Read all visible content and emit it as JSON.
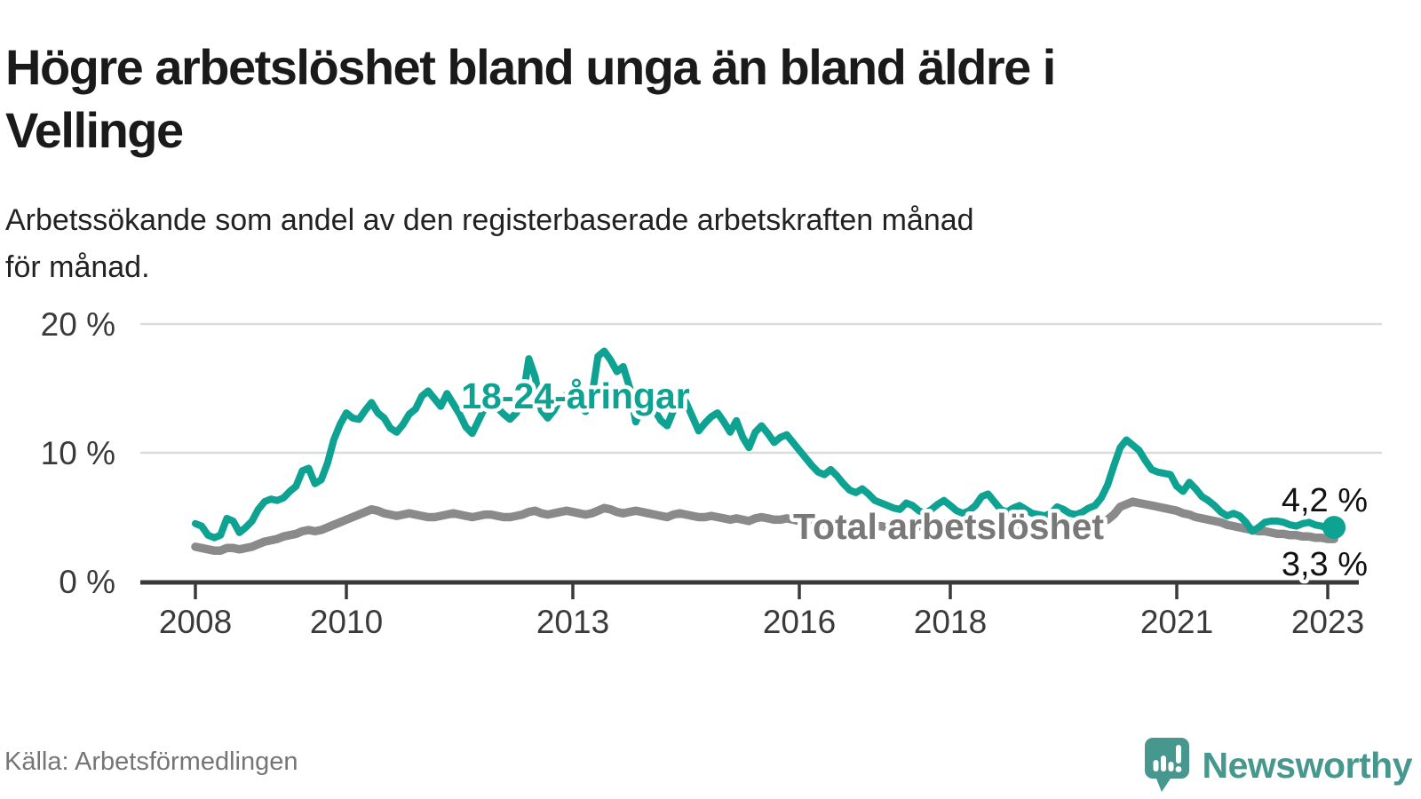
{
  "header": {
    "title_lines": [
      "Högre arbetslöshet bland unga än bland äldre i",
      "Vellinge"
    ],
    "subtitle_lines": [
      "Arbetssökande som andel av den registerbaserade arbetskraften månad",
      "för månad."
    ]
  },
  "footer": {
    "source": "Källa: Arbetsförmedlingen",
    "brand": "Newsworthy"
  },
  "colors": {
    "accent_teal": "#0DA291",
    "line_gray": "#8A8A8A",
    "label_gray": "#787878",
    "axis": "#3A3A3A",
    "grid": "#DBDBDB",
    "text_dark": "#1A1A1A",
    "text_muted": "#757575",
    "brand_teal": "#46988E"
  },
  "chart_data": {
    "type": "line",
    "title": "Högre arbetslöshet bland unga än bland äldre i Vellinge",
    "subtitle": "Arbetssökande som andel av den registerbaserade arbetskraften månad för månad.",
    "xlabel": "",
    "ylabel": "",
    "grid": "horizontal",
    "legend": "inline-labels",
    "x_start_year": 2008,
    "x_unit": "month",
    "ylim": [
      0,
      20
    ],
    "y_ticks": [
      {
        "value": 0,
        "label": "0 %"
      },
      {
        "value": 10,
        "label": "10 %"
      },
      {
        "value": 20,
        "label": "20 %"
      }
    ],
    "x_ticks": [
      {
        "year": 2008,
        "label": "2008"
      },
      {
        "year": 2010,
        "label": "2010"
      },
      {
        "year": 2013,
        "label": "2013"
      },
      {
        "year": 2016,
        "label": "2016"
      },
      {
        "year": 2018,
        "label": "2018"
      },
      {
        "year": 2021,
        "label": "2021"
      },
      {
        "year": 2023,
        "label": "2023"
      }
    ],
    "series": [
      {
        "id": "youth",
        "name": "18-24-åringar",
        "label": "18-24-åringar",
        "end_label": "4,2 %",
        "end_value": 4.2,
        "color": "#0DA291",
        "label_color": "#0DA291",
        "end_dot": true,
        "values": [
          4.5,
          4.3,
          3.6,
          3.4,
          3.6,
          4.9,
          4.7,
          3.8,
          4.2,
          4.7,
          5.6,
          6.2,
          6.4,
          6.3,
          6.5,
          7.0,
          7.4,
          8.6,
          8.8,
          7.6,
          7.9,
          9.2,
          11.0,
          12.2,
          13.1,
          12.7,
          12.6,
          13.3,
          13.9,
          13.1,
          12.7,
          11.9,
          11.6,
          12.2,
          13.0,
          13.4,
          14.4,
          14.8,
          14.2,
          13.6,
          14.6,
          13.8,
          13.0,
          12.0,
          11.5,
          12.5,
          13.5,
          13.9,
          13.5,
          13.0,
          12.6,
          13.1,
          14.1,
          17.3,
          15.9,
          13.3,
          12.7,
          13.3,
          14.2,
          14.5,
          14.3,
          13.7,
          13.2,
          14.3,
          17.5,
          17.9,
          17.2,
          16.3,
          16.7,
          15.1,
          12.4,
          13.5,
          13.9,
          13.3,
          12.5,
          12.1,
          13.3,
          14.5,
          13.9,
          12.8,
          11.7,
          12.3,
          12.8,
          13.1,
          12.4,
          11.6,
          12.5,
          11.2,
          10.4,
          11.6,
          12.1,
          11.5,
          10.8,
          11.2,
          11.4,
          10.8,
          10.2,
          9.6,
          9.0,
          8.5,
          8.3,
          8.7,
          8.2,
          7.6,
          7.1,
          6.9,
          7.2,
          6.8,
          6.3,
          6.1,
          5.9,
          5.7,
          5.6,
          6.1,
          5.9,
          5.5,
          5.3,
          5.6,
          6.0,
          6.3,
          5.9,
          5.5,
          5.3,
          5.5,
          5.9,
          6.6,
          6.8,
          6.2,
          5.6,
          5.4,
          5.7,
          5.9,
          5.6,
          5.3,
          5.2,
          5.1,
          5.3,
          5.8,
          5.6,
          5.3,
          5.2,
          5.4,
          5.7,
          5.9,
          6.5,
          7.5,
          9.0,
          10.4,
          11.0,
          10.6,
          10.2,
          9.4,
          8.7,
          8.5,
          8.4,
          8.3,
          7.4,
          7.0,
          7.7,
          7.2,
          6.6,
          6.3,
          5.9,
          5.4,
          5.1,
          5.3,
          5.1,
          4.6,
          3.9,
          4.2,
          4.6,
          4.7,
          4.7,
          4.6,
          4.4,
          4.3,
          4.5,
          4.6,
          4.4,
          4.3,
          4.1,
          4.2
        ]
      },
      {
        "id": "total",
        "name": "Total arbetslöshet",
        "label": "Total arbetslöshet",
        "end_label": "3,3 %",
        "end_value": 3.3,
        "color": "#8A8A8A",
        "label_color": "#787878",
        "end_dot": false,
        "values": [
          2.7,
          2.6,
          2.5,
          2.4,
          2.4,
          2.6,
          2.6,
          2.5,
          2.6,
          2.7,
          2.9,
          3.1,
          3.2,
          3.3,
          3.5,
          3.6,
          3.7,
          3.9,
          4.0,
          3.9,
          4.0,
          4.2,
          4.4,
          4.6,
          4.8,
          5.0,
          5.2,
          5.4,
          5.6,
          5.5,
          5.3,
          5.2,
          5.1,
          5.2,
          5.3,
          5.2,
          5.1,
          5.0,
          5.0,
          5.1,
          5.2,
          5.3,
          5.2,
          5.1,
          5.0,
          5.1,
          5.2,
          5.2,
          5.1,
          5.0,
          5.0,
          5.1,
          5.2,
          5.4,
          5.5,
          5.3,
          5.2,
          5.3,
          5.4,
          5.5,
          5.4,
          5.3,
          5.2,
          5.3,
          5.5,
          5.7,
          5.6,
          5.4,
          5.3,
          5.4,
          5.5,
          5.4,
          5.3,
          5.2,
          5.1,
          5.0,
          5.2,
          5.3,
          5.2,
          5.1,
          5.0,
          5.0,
          5.1,
          5.0,
          4.9,
          4.8,
          4.9,
          4.8,
          4.7,
          4.9,
          5.0,
          4.9,
          4.8,
          4.8,
          4.9,
          4.8,
          4.7,
          4.6,
          4.5,
          4.4,
          4.5,
          4.6,
          4.5,
          4.4,
          4.3,
          4.4,
          4.5,
          4.4,
          4.3,
          4.3,
          4.2,
          4.2,
          4.3,
          4.5,
          4.4,
          4.3,
          4.3,
          4.4,
          4.5,
          4.5,
          4.4,
          4.4,
          4.3,
          4.3,
          4.4,
          4.6,
          4.7,
          4.5,
          4.4,
          4.4,
          4.5,
          4.4,
          4.4,
          4.3,
          4.3,
          4.2,
          4.3,
          4.5,
          4.6,
          4.5,
          4.4,
          4.4,
          4.5,
          4.6,
          4.7,
          4.8,
          5.2,
          5.8,
          6.0,
          6.2,
          6.1,
          6.0,
          5.9,
          5.8,
          5.7,
          5.6,
          5.5,
          5.3,
          5.2,
          5.0,
          4.9,
          4.8,
          4.7,
          4.6,
          4.4,
          4.3,
          4.2,
          4.1,
          4.0,
          3.9,
          3.9,
          3.8,
          3.7,
          3.7,
          3.6,
          3.6,
          3.5,
          3.5,
          3.4,
          3.4,
          3.3,
          3.3
        ]
      }
    ]
  }
}
